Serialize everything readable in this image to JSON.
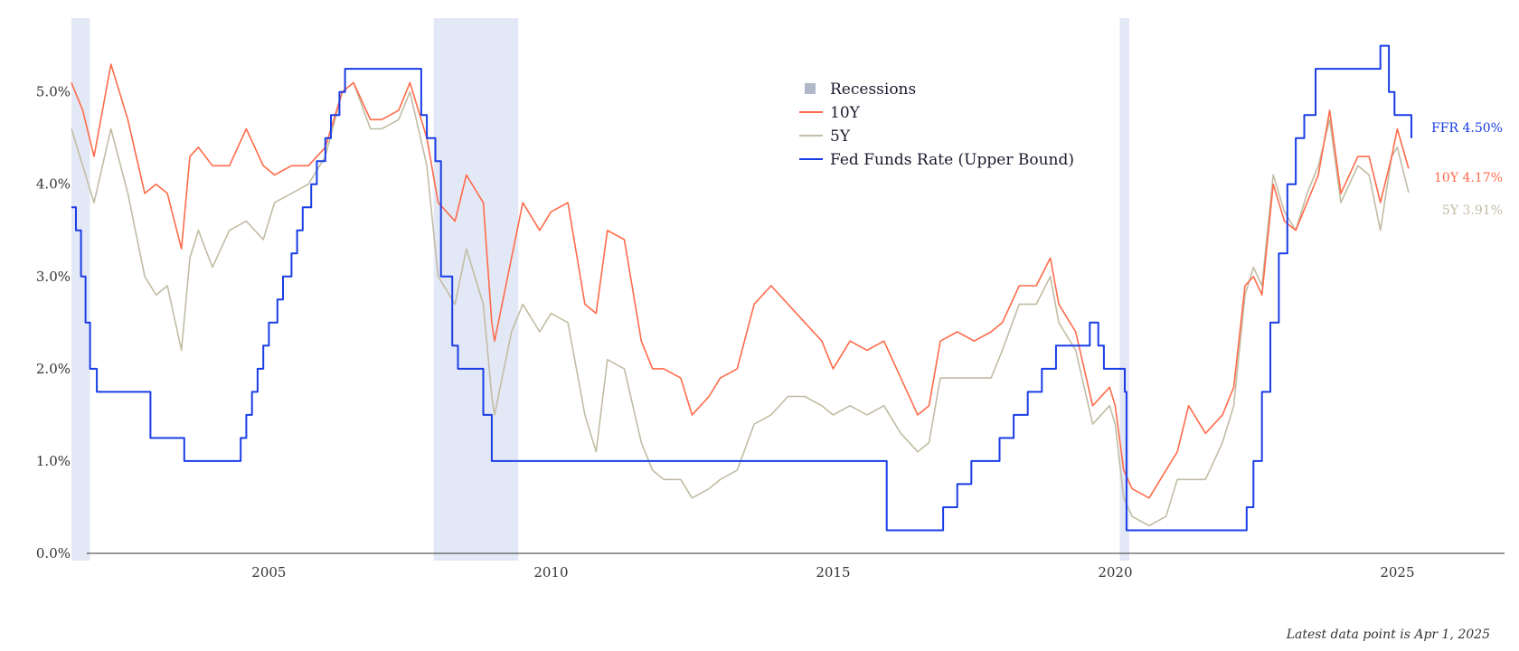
{
  "chart_data": {
    "type": "line",
    "title": "",
    "xlabel": "",
    "ylabel": "",
    "xlim": [
      2001.5,
      2026.9
    ],
    "ylim": [
      0,
      5.8
    ],
    "x_ticks": [
      2005,
      2010,
      2015,
      2020,
      2025
    ],
    "x_tick_labels": [
      "2005",
      "2010",
      "2015",
      "2020",
      "2025"
    ],
    "y_ticks": [
      0,
      1,
      2,
      3,
      4,
      5
    ],
    "y_tick_labels": [
      "0.0%",
      "1.0%",
      "2.0%",
      "3.0%",
      "4.0%",
      "5.0%"
    ],
    "legend": {
      "placement": "top-center",
      "entries": [
        {
          "label": "Recessions",
          "kind": "box"
        },
        {
          "label": "10Y",
          "kind": "line",
          "series": "10Y"
        },
        {
          "label": "5Y",
          "kind": "line",
          "series": "5Y"
        },
        {
          "label": "Fed Funds Rate (Upper Bound)",
          "kind": "line",
          "series": "FFR"
        }
      ]
    },
    "recessions": [
      {
        "start": 2001.25,
        "end": 2001.83
      },
      {
        "start": 2007.92,
        "end": 2009.42
      },
      {
        "start": 2020.08,
        "end": 2020.25
      }
    ],
    "series": [
      {
        "name": "10Y",
        "color": "#ff6b4a",
        "step": false,
        "x": [
          2001.5,
          2001.7,
          2001.9,
          2002.2,
          2002.5,
          2002.8,
          2003.0,
          2003.2,
          2003.45,
          2003.6,
          2003.75,
          2004.0,
          2004.3,
          2004.6,
          2004.9,
          2005.1,
          2005.4,
          2005.7,
          2006.0,
          2006.3,
          2006.5,
          2006.8,
          2007.0,
          2007.3,
          2007.5,
          2007.8,
          2008.0,
          2008.3,
          2008.5,
          2008.8,
          2008.95,
          2009.0,
          2009.3,
          2009.5,
          2009.8,
          2010.0,
          2010.3,
          2010.6,
          2010.8,
          2011.0,
          2011.3,
          2011.6,
          2011.8,
          2012.0,
          2012.3,
          2012.5,
          2012.8,
          2013.0,
          2013.3,
          2013.6,
          2013.9,
          2014.2,
          2014.5,
          2014.8,
          2015.0,
          2015.3,
          2015.6,
          2015.9,
          2016.2,
          2016.5,
          2016.7,
          2016.9,
          2017.2,
          2017.5,
          2017.8,
          2018.0,
          2018.3,
          2018.6,
          2018.85,
          2019.0,
          2019.3,
          2019.6,
          2019.9,
          2020.0,
          2020.15,
          2020.3,
          2020.6,
          2020.9,
          2021.1,
          2021.3,
          2021.6,
          2021.9,
          2022.1,
          2022.3,
          2022.45,
          2022.6,
          2022.8,
          2023.0,
          2023.2,
          2023.4,
          2023.6,
          2023.8,
          2024.0,
          2024.3,
          2024.5,
          2024.7,
          2024.9,
          2025.0,
          2025.2
        ],
        "values": [
          5.1,
          4.8,
          4.3,
          5.3,
          4.7,
          3.9,
          4.0,
          3.9,
          3.3,
          4.3,
          4.4,
          4.2,
          4.2,
          4.6,
          4.2,
          4.1,
          4.2,
          4.2,
          4.4,
          5.0,
          5.1,
          4.7,
          4.7,
          4.8,
          5.1,
          4.5,
          3.8,
          3.6,
          4.1,
          3.8,
          2.5,
          2.3,
          3.2,
          3.8,
          3.5,
          3.7,
          3.8,
          2.7,
          2.6,
          3.5,
          3.4,
          2.3,
          2.0,
          2.0,
          1.9,
          1.5,
          1.7,
          1.9,
          2.0,
          2.7,
          2.9,
          2.7,
          2.5,
          2.3,
          2.0,
          2.3,
          2.2,
          2.3,
          1.9,
          1.5,
          1.6,
          2.3,
          2.4,
          2.3,
          2.4,
          2.5,
          2.9,
          2.9,
          3.2,
          2.7,
          2.4,
          1.6,
          1.8,
          1.6,
          0.9,
          0.7,
          0.6,
          0.9,
          1.1,
          1.6,
          1.3,
          1.5,
          1.8,
          2.9,
          3.0,
          2.8,
          4.0,
          3.6,
          3.5,
          3.8,
          4.1,
          4.8,
          3.9,
          4.3,
          4.3,
          3.8,
          4.3,
          4.6,
          4.17
        ]
      },
      {
        "name": "5Y",
        "color": "#c2bca4",
        "step": false,
        "x": [
          2001.5,
          2001.7,
          2001.9,
          2002.2,
          2002.5,
          2002.8,
          2003.0,
          2003.2,
          2003.45,
          2003.6,
          2003.75,
          2004.0,
          2004.3,
          2004.6,
          2004.9,
          2005.1,
          2005.4,
          2005.7,
          2006.0,
          2006.3,
          2006.5,
          2006.8,
          2007.0,
          2007.3,
          2007.5,
          2007.8,
          2008.0,
          2008.3,
          2008.5,
          2008.8,
          2008.95,
          2009.0,
          2009.3,
          2009.5,
          2009.8,
          2010.0,
          2010.3,
          2010.6,
          2010.8,
          2011.0,
          2011.3,
          2011.6,
          2011.8,
          2012.0,
          2012.3,
          2012.5,
          2012.8,
          2013.0,
          2013.3,
          2013.6,
          2013.9,
          2014.2,
          2014.5,
          2014.8,
          2015.0,
          2015.3,
          2015.6,
          2015.9,
          2016.2,
          2016.5,
          2016.7,
          2016.9,
          2017.2,
          2017.5,
          2017.8,
          2018.0,
          2018.3,
          2018.6,
          2018.85,
          2019.0,
          2019.3,
          2019.6,
          2019.9,
          2020.0,
          2020.15,
          2020.3,
          2020.6,
          2020.9,
          2021.1,
          2021.3,
          2021.6,
          2021.9,
          2022.1,
          2022.3,
          2022.45,
          2022.6,
          2022.8,
          2023.0,
          2023.2,
          2023.4,
          2023.6,
          2023.8,
          2024.0,
          2024.3,
          2024.5,
          2024.7,
          2024.9,
          2025.0,
          2025.2
        ],
        "values": [
          4.6,
          4.2,
          3.8,
          4.6,
          3.9,
          3.0,
          2.8,
          2.9,
          2.2,
          3.2,
          3.5,
          3.1,
          3.5,
          3.6,
          3.4,
          3.8,
          3.9,
          4.0,
          4.3,
          5.0,
          5.1,
          4.6,
          4.6,
          4.7,
          5.0,
          4.2,
          3.0,
          2.7,
          3.3,
          2.7,
          1.7,
          1.5,
          2.4,
          2.7,
          2.4,
          2.6,
          2.5,
          1.5,
          1.1,
          2.1,
          2.0,
          1.2,
          0.9,
          0.8,
          0.8,
          0.6,
          0.7,
          0.8,
          0.9,
          1.4,
          1.5,
          1.7,
          1.7,
          1.6,
          1.5,
          1.6,
          1.5,
          1.6,
          1.3,
          1.1,
          1.2,
          1.9,
          1.9,
          1.9,
          1.9,
          2.2,
          2.7,
          2.7,
          3.0,
          2.5,
          2.2,
          1.4,
          1.6,
          1.4,
          0.6,
          0.4,
          0.3,
          0.4,
          0.8,
          0.8,
          0.8,
          1.2,
          1.6,
          2.8,
          3.1,
          2.9,
          4.1,
          3.7,
          3.5,
          3.9,
          4.2,
          4.7,
          3.8,
          4.2,
          4.1,
          3.5,
          4.3,
          4.4,
          3.91
        ]
      },
      {
        "name": "FFR",
        "color": "#1a3de6",
        "step": true,
        "x": [
          2001.5,
          2001.58,
          2001.67,
          2001.75,
          2001.83,
          2001.95,
          2002.9,
          2003.5,
          2004.5,
          2004.6,
          2004.7,
          2004.8,
          2004.9,
          2005.0,
          2005.15,
          2005.25,
          2005.4,
          2005.5,
          2005.6,
          2005.75,
          2005.85,
          2006.0,
          2006.1,
          2006.25,
          2006.35,
          2006.45,
          2006.55,
          2007.7,
          2007.8,
          2007.95,
          2008.05,
          2008.1,
          2008.25,
          2008.35,
          2008.55,
          2008.8,
          2008.95,
          2015.95,
          2016.95,
          2017.2,
          2017.45,
          2017.95,
          2018.2,
          2018.45,
          2018.7,
          2018.95,
          2019.55,
          2019.7,
          2019.8,
          2020.17,
          2020.2,
          2022.2,
          2022.33,
          2022.45,
          2022.6,
          2022.75,
          2022.9,
          2023.05,
          2023.2,
          2023.35,
          2023.55,
          2024.7,
          2024.85,
          2024.95,
          2025.25
        ],
        "values": [
          3.75,
          3.5,
          3.0,
          2.5,
          2.0,
          1.75,
          1.25,
          1.0,
          1.25,
          1.5,
          1.75,
          2.0,
          2.25,
          2.5,
          2.75,
          3.0,
          3.25,
          3.5,
          3.75,
          4.0,
          4.25,
          4.5,
          4.75,
          5.0,
          5.25,
          5.25,
          5.25,
          4.75,
          4.5,
          4.25,
          3.0,
          3.0,
          2.25,
          2.0,
          2.0,
          1.5,
          1.0,
          0.25,
          0.5,
          0.75,
          1.0,
          1.25,
          1.5,
          1.75,
          2.0,
          2.25,
          2.5,
          2.25,
          2.0,
          1.75,
          0.25,
          0.25,
          0.5,
          1.0,
          1.75,
          2.5,
          3.25,
          4.0,
          4.5,
          4.75,
          5.25,
          5.5,
          5.0,
          4.75,
          4.5
        ]
      }
    ],
    "end_labels": [
      {
        "series": "FFR",
        "text": "FFR 4.50%",
        "value": 4.5,
        "color": "#1a3de6"
      },
      {
        "series": "10Y",
        "text": "10Y 4.17%",
        "value": 4.17,
        "color": "#ff6b4a"
      },
      {
        "series": "5Y",
        "text": "5Y 3.91%",
        "value": 3.91,
        "color": "#c2bca4"
      }
    ],
    "recession_color": "#e3e8f6",
    "legend_box_color": "#b0b8c8",
    "footnote": "Latest data point is Apr 1, 2025"
  }
}
